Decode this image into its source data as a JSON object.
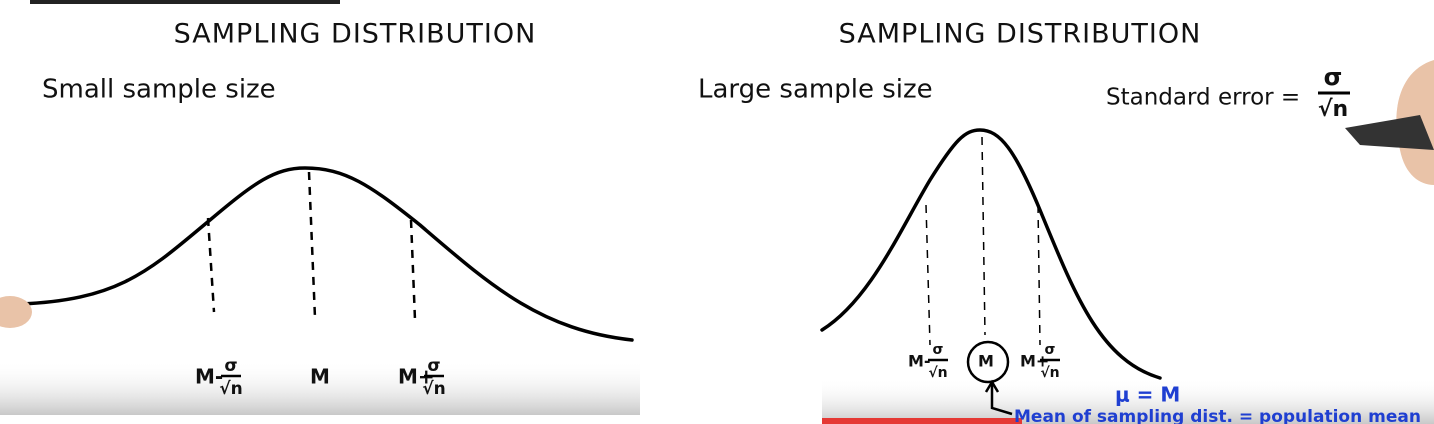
{
  "panels": [
    {
      "title": "SAMPLING DISTRIBUTION",
      "subtitle": "Small sample size",
      "labels": [
        {
          "prefix": "M-",
          "numerator": "σ",
          "denominator": "√n"
        },
        {
          "prefix": "M"
        },
        {
          "prefix": "M+",
          "numerator": "σ",
          "denominator": "√n"
        }
      ]
    },
    {
      "title": "SAMPLING DISTRIBUTION",
      "subtitle": "Large sample size",
      "formula": {
        "prefix": "Standard error =",
        "numerator": "σ",
        "denominator": "√n"
      },
      "labels": [
        {
          "prefix": "M-",
          "numerator": "σ",
          "denominator": "√n"
        },
        {
          "prefix": "M"
        },
        {
          "prefix": "M+",
          "numerator": "σ",
          "denominator": "√n"
        }
      ],
      "annotation": "μ = M",
      "note": "Mean of sampling dist. = population mean"
    }
  ]
}
